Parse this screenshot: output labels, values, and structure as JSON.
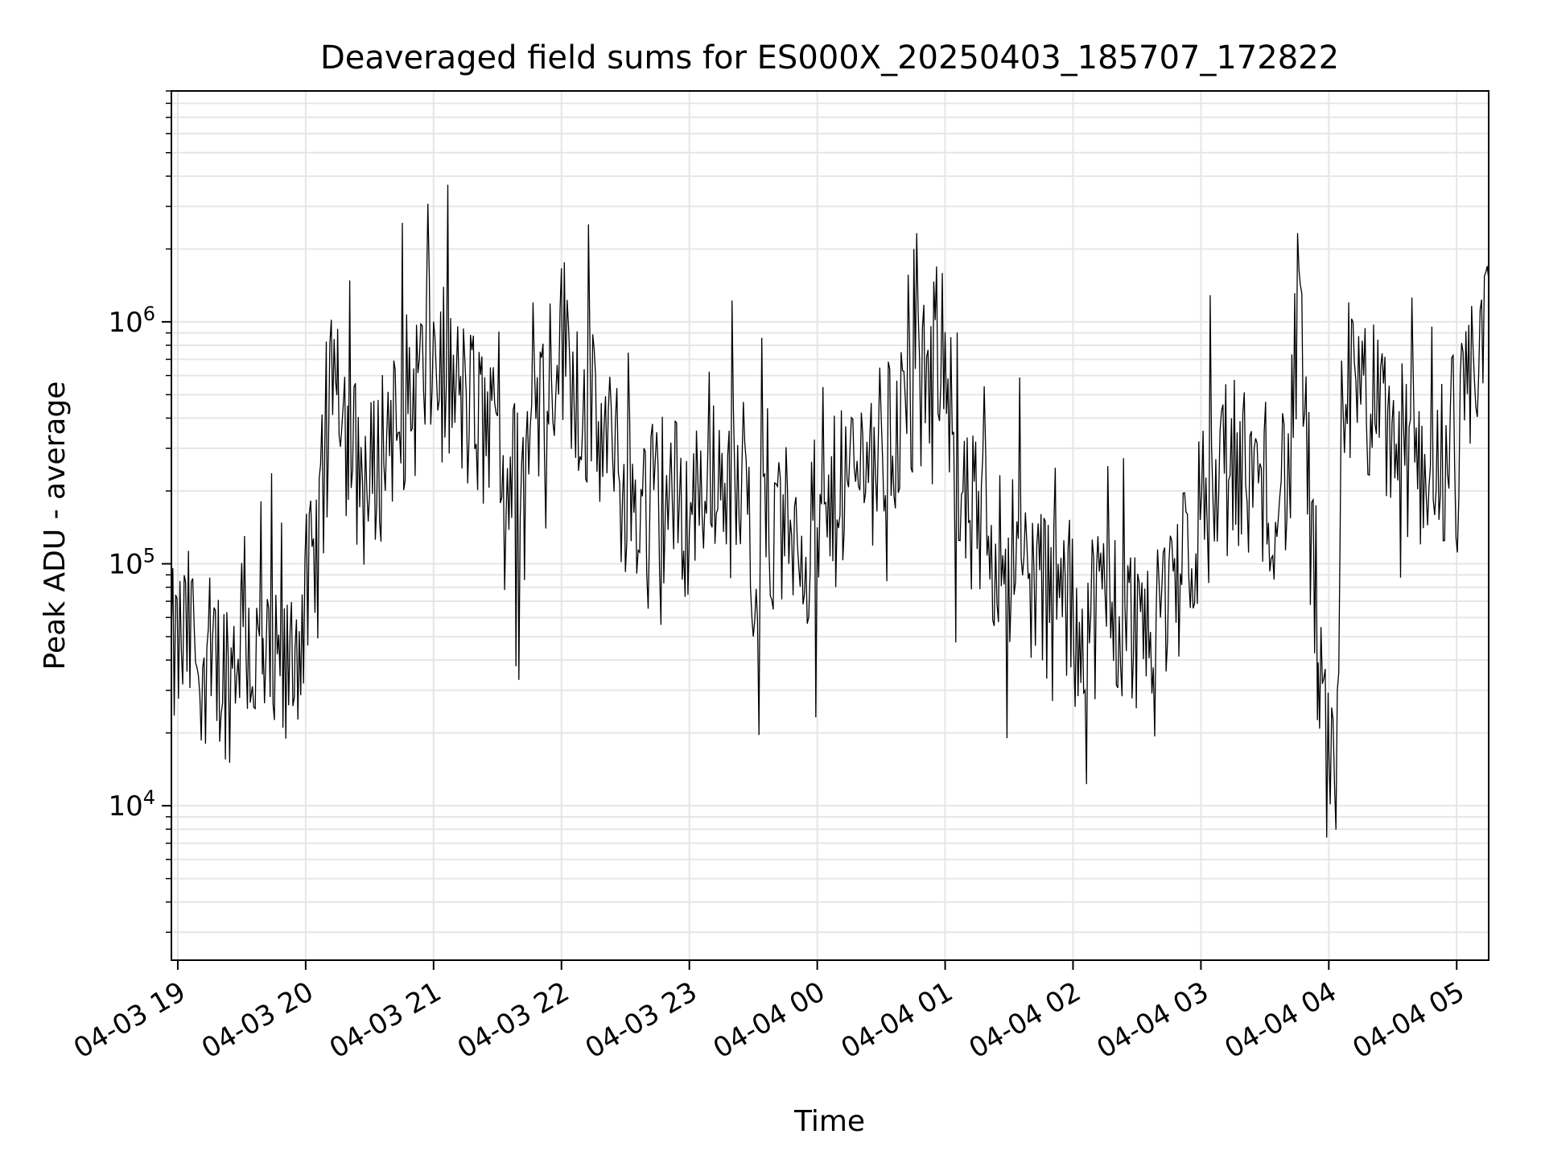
{
  "chart_data": {
    "type": "line",
    "title": "Deaveraged field sums for ES000X_20250403_185707_172822",
    "xlabel": "Time",
    "ylabel": "Peak ADU - average",
    "yscale": "log",
    "xlim": [
      "2025-04-03 18:57",
      "2025-04-04 05:15"
    ],
    "ylim": [
      2300,
      9000000
    ],
    "x_ticks": [
      "04-03 19",
      "04-03 20",
      "04-03 21",
      "04-03 22",
      "04-03 23",
      "04-04 00",
      "04-04 01",
      "04-04 02",
      "04-04 03",
      "04-04 04",
      "04-04 05"
    ],
    "y_ticks": [
      {
        "base": "10",
        "exp": "4",
        "value": 10000
      },
      {
        "base": "10",
        "exp": "5",
        "value": 100000
      },
      {
        "base": "10",
        "exp": "6",
        "value": 1000000
      }
    ],
    "grid": true,
    "line_color": "#000000",
    "grid_color": "#e6e6e6",
    "series": [
      {
        "x": [
          "2025-04-03 18:57",
          "2025-04-03 19:05",
          "2025-04-03 19:15",
          "2025-04-03 19:25",
          "2025-04-03 19:30",
          "2025-04-03 19:35",
          "2025-04-03 19:40",
          "2025-04-03 19:50",
          "2025-04-03 19:55",
          "2025-04-03 20:05",
          "2025-04-03 20:10",
          "2025-04-03 20:15",
          "2025-04-03 20:20",
          "2025-04-03 20:30",
          "2025-04-03 20:40",
          "2025-04-03 20:50",
          "2025-04-03 21:00",
          "2025-04-03 21:10",
          "2025-04-03 21:20",
          "2025-04-03 21:30",
          "2025-04-03 21:40",
          "2025-04-03 21:50",
          "2025-04-03 22:00",
          "2025-04-03 22:10",
          "2025-04-03 22:20",
          "2025-04-03 22:30",
          "2025-04-03 22:40",
          "2025-04-03 22:50",
          "2025-04-03 23:00",
          "2025-04-03 23:10",
          "2025-04-03 23:20",
          "2025-04-03 23:30",
          "2025-04-03 23:40",
          "2025-04-03 23:50",
          "2025-04-04 00:00",
          "2025-04-04 00:10",
          "2025-04-04 00:20",
          "2025-04-04 00:30",
          "2025-04-04 00:40",
          "2025-04-04 00:50",
          "2025-04-04 01:00",
          "2025-04-04 01:05",
          "2025-04-04 01:15",
          "2025-04-04 01:25",
          "2025-04-04 01:35",
          "2025-04-04 01:45",
          "2025-04-04 01:55",
          "2025-04-04 02:05",
          "2025-04-04 02:15",
          "2025-04-04 02:25",
          "2025-04-04 02:35",
          "2025-04-04 02:45",
          "2025-04-04 02:55",
          "2025-04-04 03:05",
          "2025-04-04 03:15",
          "2025-04-04 03:25",
          "2025-04-04 03:35",
          "2025-04-04 03:42",
          "2025-04-04 03:46",
          "2025-04-04 03:50",
          "2025-04-04 03:55",
          "2025-04-04 04:00",
          "2025-04-04 04:04",
          "2025-04-04 04:06",
          "2025-04-04 04:15",
          "2025-04-04 04:25",
          "2025-04-04 04:35",
          "2025-04-04 04:45",
          "2025-04-04 04:55",
          "2025-04-04 05:05",
          "2025-04-04 05:15"
        ],
        "y": [
          40000,
          50000,
          40000,
          35000,
          60000,
          40000,
          35000,
          30000,
          45000,
          100000,
          300000,
          800000,
          300000,
          200000,
          400000,
          500000,
          700000,
          500000,
          400000,
          300000,
          200000,
          500000,
          900000,
          500000,
          300000,
          200000,
          180000,
          200000,
          150000,
          300000,
          200000,
          130000,
          120000,
          150000,
          100000,
          200000,
          250000,
          300000,
          400000,
          500000,
          1000000,
          150000,
          150000,
          120000,
          100000,
          80000,
          70000,
          60000,
          70000,
          55000,
          60000,
          80000,
          120000,
          200000,
          250000,
          220000,
          200000,
          250000,
          1300000,
          250000,
          30000,
          15000,
          15000,
          600000,
          500000,
          400000,
          300000,
          250000,
          300000,
          400000,
          1500000
        ]
      }
    ]
  }
}
